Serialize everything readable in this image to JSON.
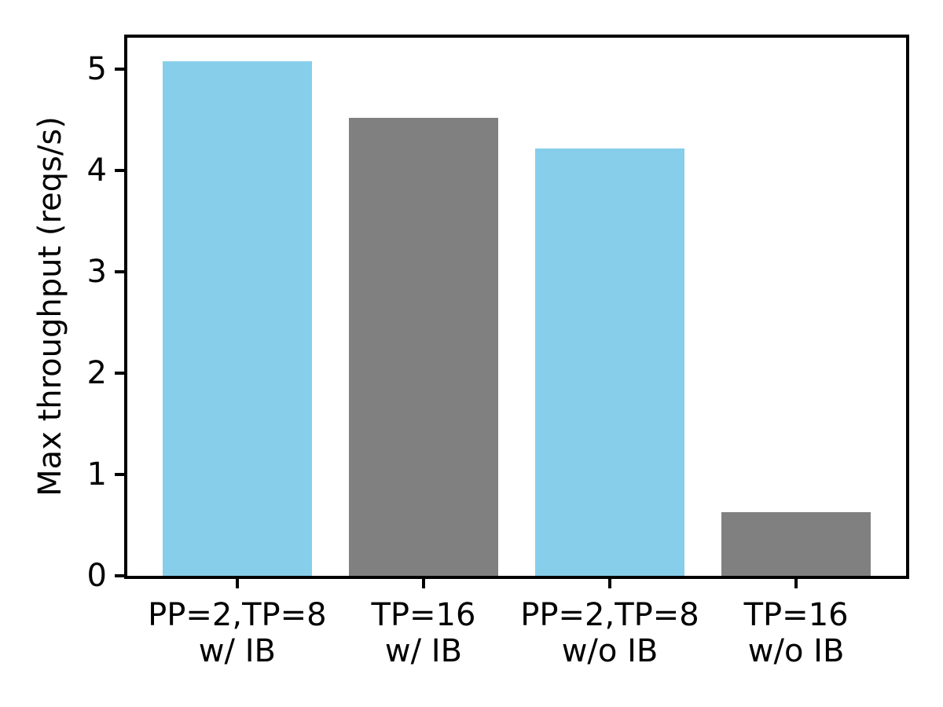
{
  "chart_data": {
    "type": "bar",
    "title": "",
    "xlabel": "",
    "ylabel": "Max throughput (reqs/s)",
    "categories": [
      "PP=2,TP=8\nw/ IB",
      "TP=16\nw/ IB",
      "PP=2,TP=8\nw/o IB",
      "TP=16\nw/o IB"
    ],
    "values": [
      5.08,
      4.52,
      4.22,
      0.63
    ],
    "bar_colors": [
      "#87CEEB",
      "#808080",
      "#87CEEB",
      "#808080"
    ],
    "yticks": [
      "0",
      "1",
      "2",
      "3",
      "4",
      "5"
    ],
    "ytick_values": [
      0,
      1,
      2,
      3,
      4,
      5
    ],
    "ylim": [
      0,
      5.31
    ],
    "xlim": [
      -0.59,
      3.59
    ],
    "bar_width_data_units": 0.8,
    "grid": false,
    "legend_position": "none",
    "colors": {
      "skyblue": "#87CEEB",
      "gray": "#808080",
      "axis": "#000000",
      "background": "#ffffff",
      "text": "#000000"
    }
  }
}
